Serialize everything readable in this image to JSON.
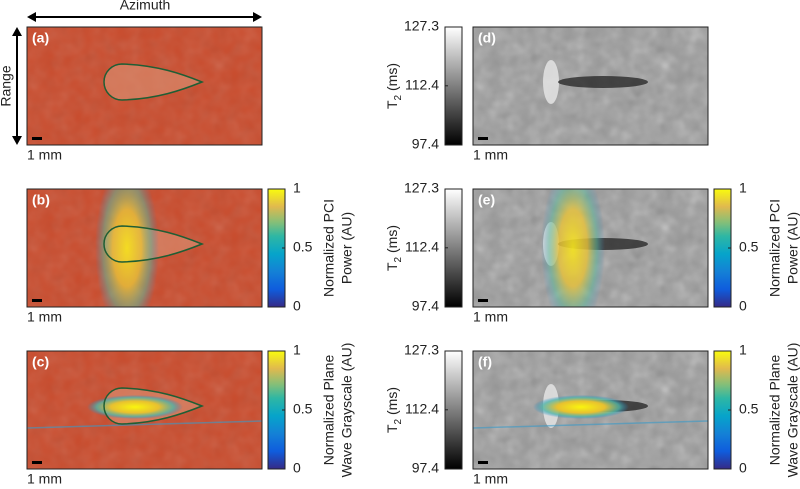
{
  "axis_labels": {
    "azimuth": "Azimuth",
    "range": "Range"
  },
  "panels": [
    {
      "label": "(a)",
      "scale": "1 mm"
    },
    {
      "label": "(b)",
      "scale": "1 mm"
    },
    {
      "label": "(c)",
      "scale": "1 mm"
    },
    {
      "label": "(d)",
      "scale": "1 mm"
    },
    {
      "label": "(e)",
      "scale": "1 mm"
    },
    {
      "label": "(f)",
      "scale": "1 mm"
    }
  ],
  "colorbars": {
    "pci": {
      "label_lines": [
        "Normalized PCI",
        "Power (AU)"
      ],
      "ticks": [
        1,
        0.5,
        0
      ]
    },
    "plane": {
      "label_lines": [
        "Normalized Plane",
        "Wave Grayscale (AU)"
      ],
      "ticks": [
        1,
        0.5,
        0
      ]
    },
    "t2": {
      "label_main": "T",
      "label_sub": "2",
      "label_unit": " (ms)",
      "ticks": [
        127.3,
        112.4,
        97.4
      ]
    }
  }
}
